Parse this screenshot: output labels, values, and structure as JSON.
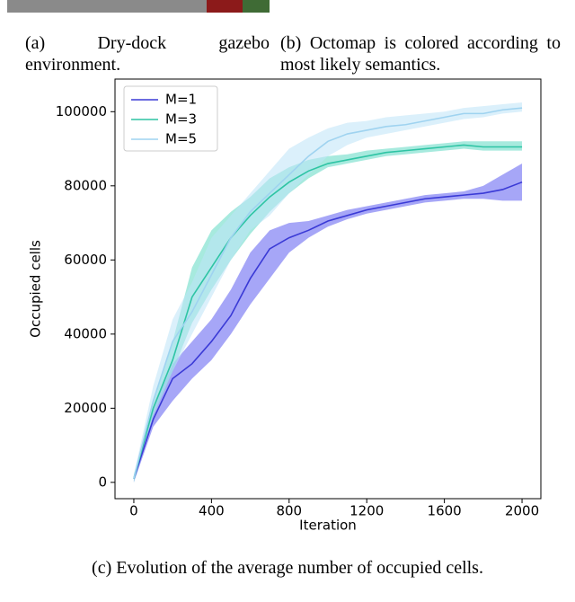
{
  "captions": {
    "a": "(a) Dry-dock gazebo environment.",
    "b": "(b) Octomap is colored according to most likely semantics.",
    "c": "(c) Evolution of the average number of occupied cells."
  },
  "chart_data": {
    "type": "line",
    "x_label": "Iteration",
    "y_label": "Occupied cells",
    "x": [
      0,
      100,
      200,
      300,
      400,
      500,
      600,
      700,
      800,
      900,
      1000,
      1100,
      1200,
      1300,
      1400,
      1500,
      1600,
      1700,
      1800,
      1900,
      2000
    ],
    "xlim": [
      -97,
      2097
    ],
    "ylim": [
      -4400,
      108800
    ],
    "xticks": [
      0,
      400,
      800,
      1200,
      1600,
      2000
    ],
    "yticks": [
      0,
      20000,
      40000,
      60000,
      80000,
      100000
    ],
    "legend": "top-left",
    "series": [
      {
        "name": "M=1",
        "color": "#3a3ad6",
        "band_color": "#5c5cf0",
        "values": [
          1000,
          17000,
          28000,
          32000,
          38000,
          45000,
          55000,
          63000,
          66000,
          68000,
          70500,
          72000,
          73500,
          74500,
          75500,
          76500,
          77000,
          77500,
          78000,
          79000,
          81000
        ],
        "lower": [
          0,
          15000,
          22000,
          28000,
          33000,
          40000,
          48000,
          55000,
          62000,
          66000,
          69000,
          71000,
          72500,
          73500,
          74500,
          75500,
          76000,
          76500,
          76500,
          76000,
          76000
        ],
        "upper": [
          2000,
          20000,
          32000,
          38000,
          44000,
          52000,
          62000,
          68000,
          70000,
          70500,
          72000,
          73500,
          74500,
          75500,
          76500,
          77500,
          78000,
          78500,
          80000,
          83000,
          86000
        ]
      },
      {
        "name": "M=3",
        "color": "#2ec4a4",
        "band_color": "#5fd9c3",
        "values": [
          1000,
          20000,
          33000,
          50000,
          58000,
          66000,
          72000,
          77000,
          81000,
          84000,
          86000,
          87000,
          88000,
          89000,
          89500,
          90000,
          90500,
          91000,
          90500,
          90500,
          90500
        ],
        "lower": [
          0,
          18000,
          30000,
          43000,
          52000,
          60000,
          67000,
          73000,
          78000,
          82000,
          85000,
          86000,
          87000,
          88000,
          88500,
          89000,
          89500,
          90000,
          89500,
          89500,
          89500
        ],
        "upper": [
          2000,
          22000,
          38000,
          58000,
          68000,
          73000,
          77000,
          82000,
          85000,
          87000,
          88000,
          88500,
          89500,
          90000,
          90500,
          91000,
          91500,
          92000,
          92000,
          92000,
          92000
        ]
      },
      {
        "name": "M=5",
        "color": "#9fd3f0",
        "band_color": "#bde3f8",
        "values": [
          1000,
          22000,
          38000,
          46000,
          56000,
          66000,
          73000,
          78000,
          83000,
          88000,
          92000,
          94000,
          95000,
          96000,
          96500,
          97500,
          98500,
          99500,
          99500,
          100500,
          101000
        ],
        "lower": [
          0,
          18000,
          30000,
          40000,
          50000,
          60000,
          68000,
          72000,
          78000,
          83000,
          88000,
          91000,
          93000,
          94000,
          95000,
          96000,
          97000,
          98000,
          98500,
          99500,
          100000
        ],
        "upper": [
          2000,
          26000,
          44000,
          54000,
          66000,
          72000,
          78000,
          84000,
          90000,
          93000,
          95500,
          97000,
          97500,
          98500,
          99000,
          99500,
          100000,
          101000,
          101500,
          102000,
          102500
        ]
      }
    ]
  }
}
